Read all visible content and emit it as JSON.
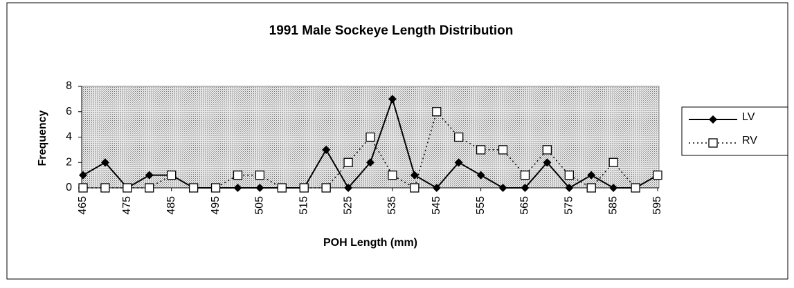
{
  "chart_data": {
    "type": "line",
    "title": "1991 Male Sockeye Length Distribution",
    "x_label": "POH Length (mm)",
    "y_label": "Frequency",
    "x": [
      465,
      470,
      475,
      480,
      485,
      490,
      495,
      500,
      505,
      510,
      515,
      520,
      525,
      530,
      535,
      540,
      545,
      550,
      555,
      560,
      565,
      570,
      575,
      580,
      585,
      590,
      595
    ],
    "series": [
      {
        "name": "LV",
        "color": "#000000",
        "values": [
          1,
          2,
          0,
          1,
          1,
          0,
          0,
          0,
          0,
          0,
          0,
          3,
          0,
          2,
          7,
          1,
          0,
          2,
          1,
          0,
          0,
          2,
          0,
          1,
          0,
          0,
          1
        ]
      },
      {
        "name": "RV",
        "color": "#000000",
        "values": [
          0,
          0,
          0,
          0,
          1,
          0,
          0,
          1,
          1,
          0,
          0,
          0,
          2,
          4,
          1,
          0,
          6,
          4,
          3,
          3,
          1,
          3,
          1,
          0,
          2,
          0,
          1
        ]
      }
    ],
    "xlim": [
      465,
      595
    ],
    "xticks": [
      465,
      475,
      485,
      495,
      505,
      515,
      525,
      535,
      545,
      555,
      565,
      575,
      585,
      595
    ],
    "ylim": [
      0,
      8
    ],
    "yticks": [
      0,
      2,
      4,
      6,
      8
    ],
    "legend": "right"
  }
}
